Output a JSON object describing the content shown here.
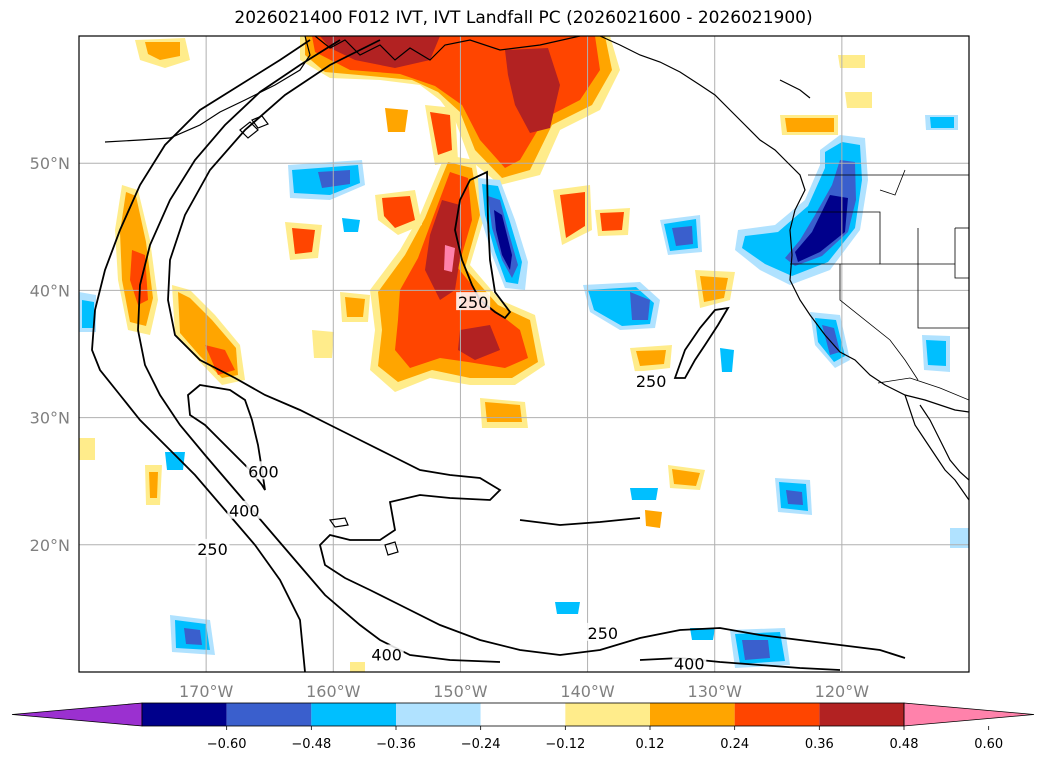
{
  "title": "2026021400 F012 IVT, IVT Landfall PC (2026021600 - 2026021900)",
  "map": {
    "lon_range": [
      -180,
      -110
    ],
    "lat_range": [
      10,
      60
    ],
    "lat_ticks": [
      {
        "value": 50,
        "label": "50°N"
      },
      {
        "value": 40,
        "label": "40°N"
      },
      {
        "value": 30,
        "label": "30°N"
      },
      {
        "value": 20,
        "label": "20°N"
      }
    ],
    "lon_ticks": [
      {
        "value": -170,
        "label": "170°W"
      },
      {
        "value": -160,
        "label": "160°W"
      },
      {
        "value": -150,
        "label": "150°W"
      },
      {
        "value": -140,
        "label": "140°W"
      },
      {
        "value": -130,
        "label": "130°W"
      },
      {
        "value": -120,
        "label": "120°W"
      }
    ],
    "grid": true,
    "ivt_contour_labels": [
      {
        "text": "250",
        "lon": -149,
        "lat": 39
      },
      {
        "text": "250",
        "lon": -135,
        "lat": 32.8
      },
      {
        "text": "600",
        "lon": -165.5,
        "lat": 25.7
      },
      {
        "text": "400",
        "lon": -167,
        "lat": 22.6
      },
      {
        "text": "250",
        "lon": -169.5,
        "lat": 19.6
      },
      {
        "text": "400",
        "lon": -155.8,
        "lat": 11.3
      },
      {
        "text": "250",
        "lon": -138.8,
        "lat": 13
      },
      {
        "text": "400",
        "lon": -132,
        "lat": 10.6
      }
    ]
  },
  "colorbar": {
    "ticks": [
      "−0.60",
      "−0.48",
      "−0.36",
      "−0.24",
      "−0.12",
      "0.12",
      "0.24",
      "0.36",
      "0.48",
      "0.60"
    ],
    "colors": [
      "#9b30d0",
      "#00008b",
      "#3a5fcd",
      "#00bfff",
      "#b0e2ff",
      "#ffffff",
      "#ffec8b",
      "#ffa500",
      "#ff4500",
      "#b22222",
      "#ff82ab"
    ]
  }
}
